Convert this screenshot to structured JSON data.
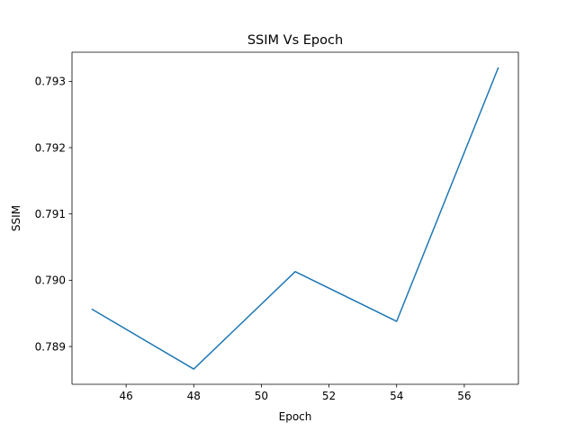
{
  "chart_data": {
    "type": "line",
    "title": "SSIM Vs Epoch",
    "xlabel": "Epoch",
    "ylabel": "SSIM",
    "xlim": [
      44.4,
      57.6
    ],
    "ylim": [
      0.78843,
      0.79344
    ],
    "x_ticks": [
      46,
      48,
      50,
      52,
      54,
      56
    ],
    "y_ticks": [
      0.789,
      0.79,
      0.791,
      0.792,
      0.793
    ],
    "x_tick_labels": [
      "46",
      "48",
      "50",
      "52",
      "54",
      "56"
    ],
    "y_tick_labels": [
      "0.789",
      "0.790",
      "0.791",
      "0.792",
      "0.793"
    ],
    "grid": false,
    "series": [
      {
        "color": "#1f77b4",
        "x": [
          45,
          48,
          51,
          54,
          57
        ],
        "y": [
          0.78956,
          0.78866,
          0.79013,
          0.78938,
          0.7932
        ]
      }
    ]
  }
}
